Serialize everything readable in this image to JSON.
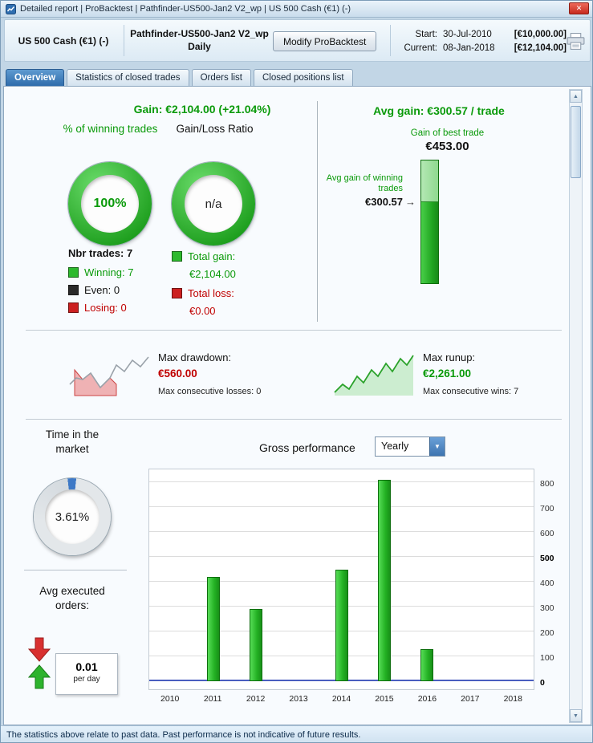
{
  "colors": {
    "green": "#0a9a0a",
    "red": "#c00000",
    "accent_blue": "#3e79c6",
    "bar_green": "#2ecc2e"
  },
  "icons": {
    "close": "✕",
    "dropdown_arrow": "▼",
    "scroll_up": "▲",
    "scroll_down": "▼",
    "arrow_right": "→"
  },
  "window": {
    "title": "Detailed report | ProBacktest | Pathfinder-US500-Jan2 V2_wp | US 500 Cash (€1) (-)"
  },
  "header": {
    "instrument": "US 500 Cash (€1) (-)",
    "system_name": "Pathfinder-US500-Jan2 V2_wp",
    "timeframe": "Daily",
    "modify_button": "Modify ProBacktest",
    "start_label": "Start:",
    "start_date": "30-Jul-2010",
    "start_value": "[€10,000.00]",
    "current_label": "Current:",
    "current_date": "08-Jan-2018",
    "current_value": "[€12,104.00]"
  },
  "tabs": [
    {
      "label": "Overview",
      "active": true
    },
    {
      "label": "Statistics of closed trades",
      "active": false
    },
    {
      "label": "Orders list",
      "active": false
    },
    {
      "label": "Closed positions list",
      "active": false
    }
  ],
  "overview": {
    "gain_line": "Gain: €2,104.00 (+21.04%)",
    "winning_pct": {
      "title": "% of winning trades",
      "value": "100%"
    },
    "gain_loss": {
      "title": "Gain/Loss Ratio",
      "value": "n/a"
    },
    "nbr_trades": "Nbr trades: 7",
    "legend": [
      {
        "label": "Winning: 7",
        "color": "#2db92d"
      },
      {
        "label": "Even: 0",
        "color": "#2a2a2a"
      },
      {
        "label": "Losing: 0",
        "color": "#cc2020"
      }
    ],
    "total_gain_label": "Total gain:",
    "total_gain_value": "€2,104.00",
    "total_loss_label": "Total loss:",
    "total_loss_value": "€0.00",
    "avg_gain_line": "Avg gain: €300.57 / trade",
    "best_trade_label": "Gain of best trade",
    "best_trade_value": "€453.00",
    "avg_win_label": "Avg gain of winning trades",
    "avg_win_value": "€300.57",
    "drawdown": {
      "label": "Max drawdown:",
      "value": "€560.00",
      "consecutive": "Max consecutive losses: 0"
    },
    "runup": {
      "label": "Max runup:",
      "value": "€2,261.00",
      "consecutive": "Max consecutive wins: 7"
    },
    "time_in_market": {
      "title": "Time in the market",
      "value": "3.61%",
      "percent": 3.61
    },
    "avg_orders": {
      "title": "Avg executed orders:",
      "value": "0.01",
      "unit": "per day"
    },
    "gross_performance_label": "Gross performance",
    "period_value": "Yearly"
  },
  "chart_data": {
    "type": "bar",
    "title": "Gross performance (Yearly)",
    "categories": [
      "2010",
      "2011",
      "2012",
      "2013",
      "2014",
      "2015",
      "2016",
      "2017",
      "2018"
    ],
    "values": [
      0,
      420,
      290,
      0,
      450,
      810,
      130,
      0,
      0
    ],
    "xlabel": "",
    "ylabel": "",
    "ylim": [
      0,
      850
    ],
    "yticks": [
      0,
      100,
      200,
      300,
      400,
      500,
      600,
      700,
      800
    ],
    "bold_ticks": [
      0,
      500
    ],
    "bar_color": "#2ecc2e",
    "grid": true,
    "legend_position": "none"
  },
  "footer": {
    "text": "The statistics above relate to past data. Past performance is not indicative of future results."
  }
}
